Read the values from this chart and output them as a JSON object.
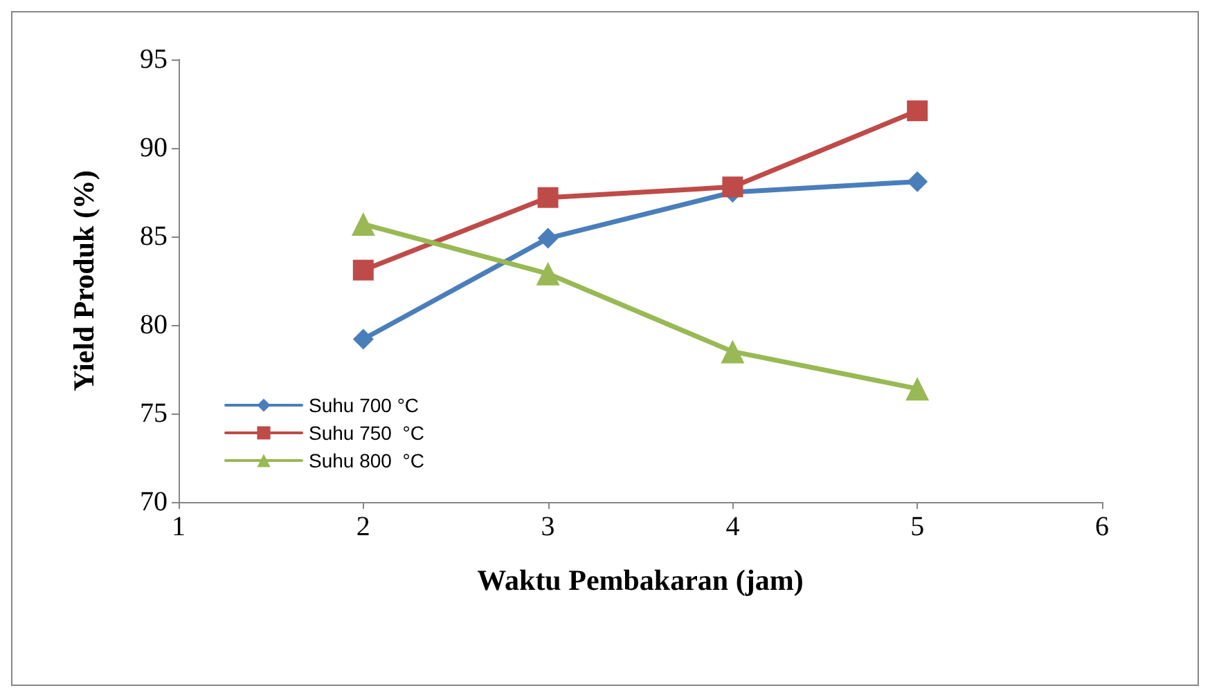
{
  "chart_data": {
    "type": "line",
    "xlabel": "Waktu Pembakaran (jam)",
    "ylabel": "Yield Produk (%)",
    "x": [
      2,
      3,
      4,
      5
    ],
    "xlim": [
      1,
      6
    ],
    "xticks": [
      1,
      2,
      3,
      4,
      5,
      6
    ],
    "ylim": [
      70,
      95
    ],
    "yticks": [
      70,
      75,
      80,
      85,
      90,
      95
    ],
    "grid": false,
    "legend": "left",
    "series": [
      {
        "name": "Suhu 700 °C",
        "color": "#4a7ebb",
        "marker": "diamond",
        "values": [
          79.2,
          84.9,
          87.5,
          88.1
        ]
      },
      {
        "name": "Suhu 750  °C",
        "color": "#be4b48",
        "marker": "square",
        "values": [
          83.1,
          87.2,
          87.8,
          92.1
        ]
      },
      {
        "name": "Suhu 800  °C",
        "color": "#98b954",
        "marker": "triangle",
        "values": [
          85.7,
          82.9,
          78.5,
          76.4
        ]
      }
    ]
  }
}
